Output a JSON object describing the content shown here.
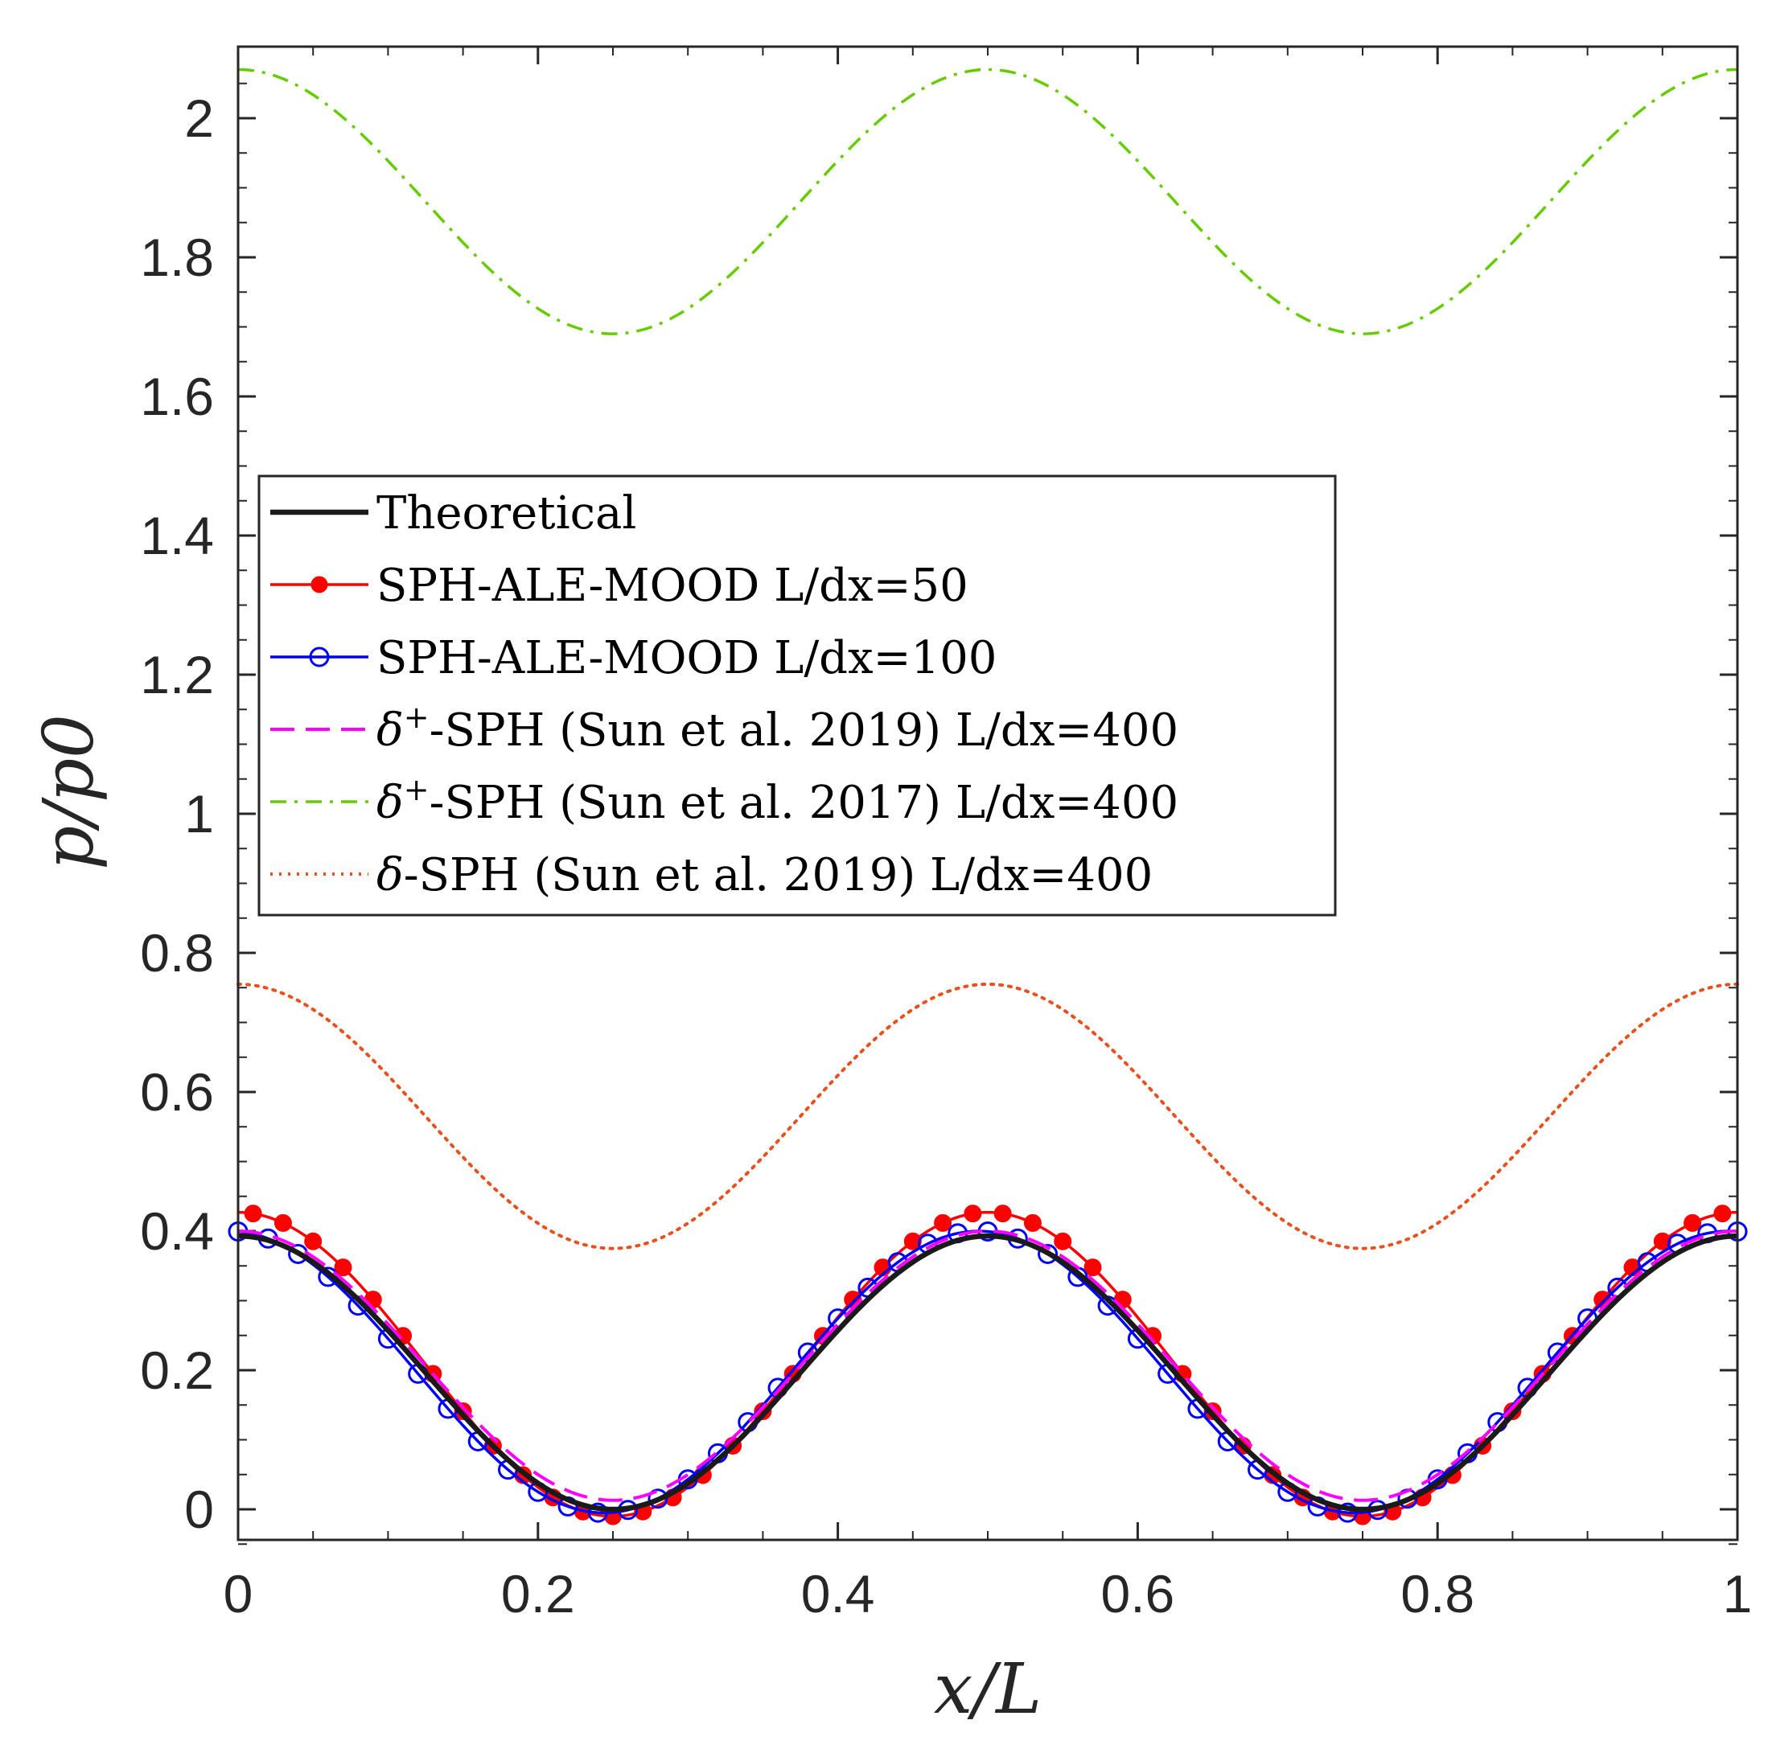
{
  "chart_data": {
    "type": "line",
    "title": "",
    "xlabel": "x/L",
    "ylabel": "p/p0",
    "xlim": [
      0,
      1
    ],
    "ylim": [
      -0.05,
      2.1
    ],
    "xticks": [
      0,
      0.2,
      0.4,
      0.6,
      0.8,
      1
    ],
    "xtick_labels": [
      "0",
      "0.2",
      "0.4",
      "0.6",
      "0.8",
      "1"
    ],
    "yticks": [
      0,
      0.2,
      0.4,
      0.6,
      0.8,
      1,
      1.2,
      1.4,
      1.6,
      1.8,
      2
    ],
    "ytick_labels": [
      "0",
      "0.2",
      "0.4",
      "0.6",
      "0.8",
      "1",
      "1.2",
      "1.4",
      "1.6",
      "1.8",
      "2"
    ],
    "legend_position": "center-left",
    "series": [
      {
        "name": "Theoretical",
        "label_prefix": "",
        "label_suffix": "Theoretical",
        "greek": "",
        "superscript": "",
        "style": "solid",
        "color": "#1a1a1a",
        "marker": "none",
        "model": {
          "mean": 0.1965,
          "amp": 0.1965,
          "phase": 0.0
        }
      },
      {
        "name": "SPH-ALE-MOOD L/dx=50",
        "label_prefix": "",
        "label_suffix": "SPH-ALE-MOOD L/dx=50",
        "greek": "",
        "superscript": "",
        "style": "solid",
        "color": "#ff0000",
        "marker": "filled-circle",
        "model": {
          "mean": 0.2085,
          "amp": 0.2185,
          "phase": 0.0
        },
        "marker_x": [
          0.01,
          0.03,
          0.05,
          0.07,
          0.09,
          0.11,
          0.13,
          0.15,
          0.17,
          0.19,
          0.21,
          0.23,
          0.25,
          0.27,
          0.29,
          0.31,
          0.33,
          0.35,
          0.37,
          0.39,
          0.41,
          0.43,
          0.45,
          0.47,
          0.49,
          0.51,
          0.53,
          0.55,
          0.57,
          0.59,
          0.61,
          0.63,
          0.65,
          0.67,
          0.69,
          0.71,
          0.73,
          0.75,
          0.77,
          0.79,
          0.81,
          0.83,
          0.85,
          0.87,
          0.89,
          0.91,
          0.93,
          0.95,
          0.97,
          0.99
        ]
      },
      {
        "name": "SPH-ALE-MOOD L/dx=100",
        "label_prefix": "",
        "label_suffix": "SPH-ALE-MOOD L/dx=100",
        "greek": "",
        "superscript": "",
        "style": "solid",
        "color": "#0000ff",
        "marker": "open-circle",
        "model": {
          "mean": 0.1975,
          "amp": 0.2025,
          "phase": -0.006
        },
        "marker_x": [
          0.0,
          0.02,
          0.04,
          0.06,
          0.08,
          0.1,
          0.12,
          0.14,
          0.16,
          0.18,
          0.2,
          0.22,
          0.24,
          0.26,
          0.28,
          0.3,
          0.32,
          0.34,
          0.36,
          0.38,
          0.4,
          0.42,
          0.44,
          0.46,
          0.48,
          0.5,
          0.52,
          0.54,
          0.56,
          0.58,
          0.6,
          0.62,
          0.64,
          0.66,
          0.68,
          0.7,
          0.72,
          0.74,
          0.76,
          0.78,
          0.8,
          0.82,
          0.84,
          0.86,
          0.88,
          0.9,
          0.92,
          0.94,
          0.96,
          0.98,
          1.0
        ]
      },
      {
        "name": "δ+-SPH (Sun et al. 2019) L/dx=400",
        "label_prefix": "",
        "label_suffix": "-SPH (Sun et al. 2019) L/dx=400",
        "greek": "δ",
        "superscript": "+",
        "style": "dashed",
        "color": "#ff00ff",
        "marker": "none",
        "model": {
          "mean": 0.2065,
          "amp": 0.1935,
          "phase": 0.0
        }
      },
      {
        "name": "δ+-SPH (Sun et al. 2017) L/dx=400",
        "label_prefix": "",
        "label_suffix": "-SPH (Sun et al. 2017) L/dx=400",
        "greek": "δ",
        "superscript": "+",
        "style": "dashdot",
        "color": "#66cc00",
        "marker": "none",
        "model": {
          "mean": 1.88,
          "amp": 0.19,
          "phase": 0.0
        }
      },
      {
        "name": "δ-SPH (Sun et al. 2019) L/dx=400",
        "label_prefix": "",
        "label_suffix": "-SPH (Sun et al. 2019) L/dx=400",
        "greek": "δ",
        "superscript": "",
        "style": "dotted",
        "color": "#e8501e",
        "marker": "none",
        "model": {
          "mean": 0.565,
          "amp": 0.19,
          "phase": 0.0
        }
      }
    ]
  }
}
